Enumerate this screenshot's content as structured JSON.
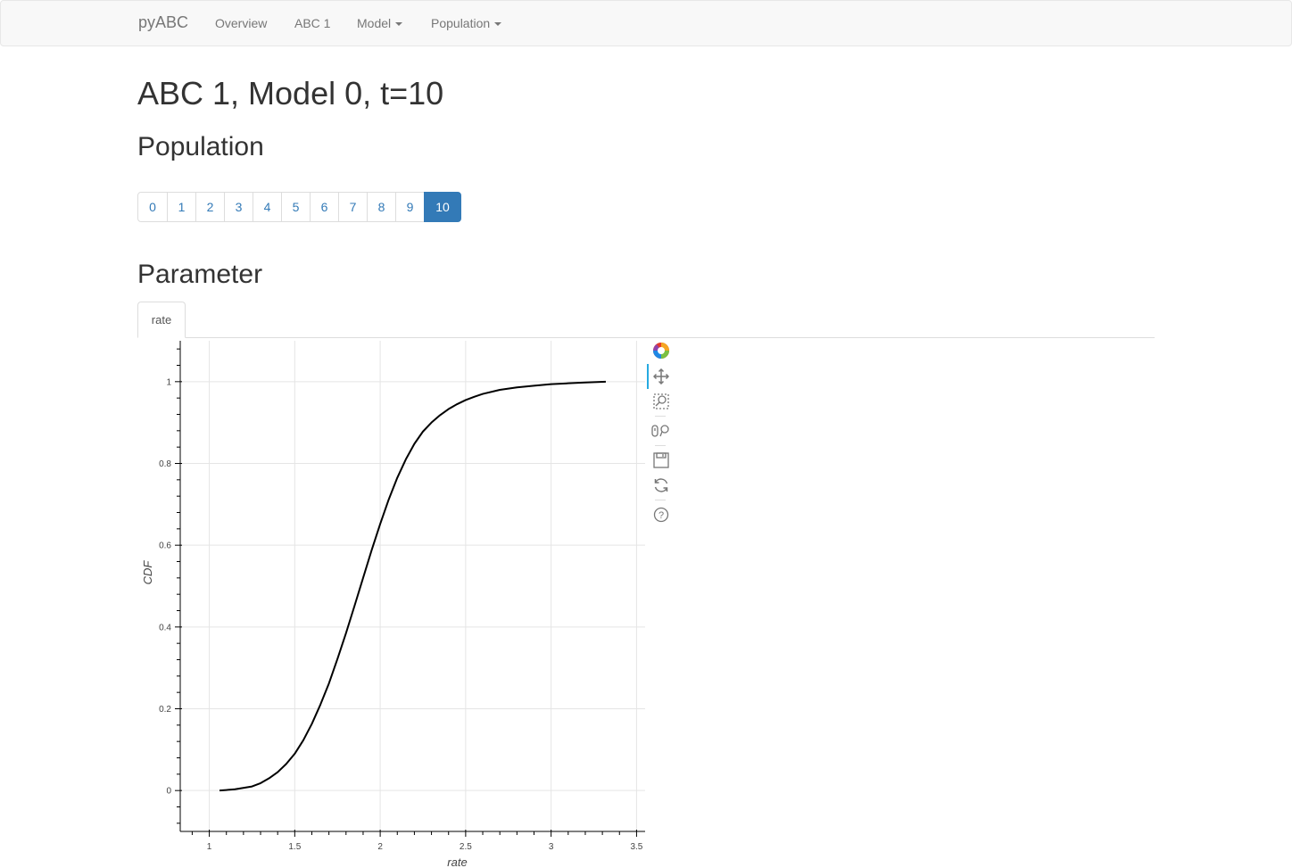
{
  "nav": {
    "brand": "pyABC",
    "links": [
      {
        "label": "Overview"
      },
      {
        "label": "ABC 1"
      },
      {
        "label": "Model"
      },
      {
        "label": "Population"
      }
    ]
  },
  "page": {
    "title": "ABC 1, Model 0, t=10",
    "population_heading": "Population",
    "parameter_heading": "Parameter"
  },
  "pagination": {
    "pages": [
      "0",
      "1",
      "2",
      "3",
      "4",
      "5",
      "6",
      "7",
      "8",
      "9",
      "10"
    ],
    "active": "10"
  },
  "tabs": [
    {
      "label": "rate"
    }
  ],
  "toolbar": {
    "tools": [
      "bokeh-logo-icon",
      "pan-icon",
      "box-zoom-icon",
      "wheel-zoom-icon",
      "save-icon",
      "reset-icon",
      "help-icon"
    ]
  },
  "chart_data": {
    "type": "line",
    "xlabel": "rate",
    "ylabel": "CDF",
    "xlim": [
      0.83,
      3.55
    ],
    "ylim": [
      -0.1,
      1.1
    ],
    "xticks": [
      1,
      1.5,
      2,
      2.5,
      3,
      3.5
    ],
    "xtick_labels": [
      "1",
      "1.5",
      "2",
      "2.5",
      "3",
      "3.5"
    ],
    "yticks": [
      0,
      0.2,
      0.4,
      0.6,
      0.8,
      1
    ],
    "ytick_labels": [
      "0",
      "0.2",
      "0.4",
      "0.6",
      "0.8",
      "1"
    ],
    "grid": true,
    "line_color": "#000000",
    "series": [
      {
        "x": [
          1.06,
          1.15,
          1.25,
          1.3,
          1.35,
          1.4,
          1.45,
          1.5,
          1.55,
          1.6,
          1.65,
          1.7,
          1.75,
          1.8,
          1.85,
          1.9,
          1.95,
          2.0,
          2.05,
          2.1,
          2.15,
          2.2,
          2.25,
          2.3,
          2.35,
          2.4,
          2.45,
          2.5,
          2.55,
          2.6,
          2.7,
          2.8,
          2.9,
          3.0,
          3.1,
          3.2,
          3.32
        ],
        "y": [
          0.0,
          0.003,
          0.01,
          0.018,
          0.03,
          0.045,
          0.065,
          0.09,
          0.123,
          0.163,
          0.21,
          0.262,
          0.322,
          0.385,
          0.452,
          0.52,
          0.588,
          0.652,
          0.712,
          0.765,
          0.81,
          0.848,
          0.878,
          0.9,
          0.918,
          0.933,
          0.945,
          0.955,
          0.963,
          0.97,
          0.98,
          0.986,
          0.99,
          0.994,
          0.996,
          0.998,
          1.0
        ]
      }
    ]
  }
}
